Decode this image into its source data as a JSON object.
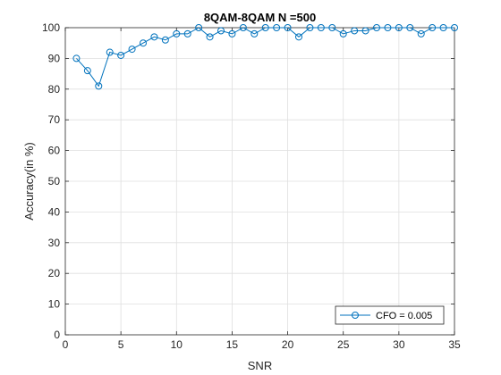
{
  "chart_data": {
    "type": "line",
    "title": "8QAM-8QAM N =500",
    "xlabel": "SNR",
    "ylabel": "Accuracy(in %)",
    "xlim": [
      0,
      35
    ],
    "ylim": [
      0,
      100
    ],
    "xticks": [
      0,
      5,
      10,
      15,
      20,
      25,
      30,
      35
    ],
    "yticks": [
      0,
      10,
      20,
      30,
      40,
      50,
      60,
      70,
      80,
      90,
      100
    ],
    "grid": true,
    "legend_position": "bottom-right",
    "series": [
      {
        "name": "CFO = 0.005",
        "color": "#0072BD",
        "marker": "circle",
        "x": [
          1,
          2,
          3,
          4,
          5,
          6,
          7,
          8,
          9,
          10,
          11,
          12,
          13,
          14,
          15,
          16,
          17,
          18,
          19,
          20,
          21,
          22,
          23,
          24,
          25,
          26,
          27,
          28,
          29,
          30,
          31,
          32,
          33,
          34,
          35
        ],
        "y": [
          90,
          86,
          81,
          92,
          91,
          93,
          95,
          97,
          96,
          98,
          98,
          100,
          97,
          99,
          98,
          100,
          98,
          100,
          100,
          100,
          97,
          100,
          100,
          100,
          98,
          99,
          99,
          100,
          100,
          100,
          100,
          98,
          100,
          100,
          100
        ]
      }
    ]
  }
}
